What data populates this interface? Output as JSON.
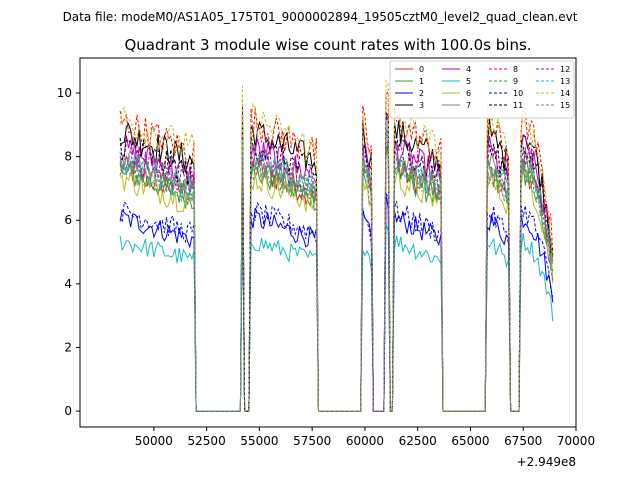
{
  "chart_data": {
    "type": "line",
    "suptitle": "Data file: modeM0/AS1A05_175T01_9000002894_19505cztM0_level2_quad_clean.evt",
    "title": "Quadrant 3 module wise count rates with 100.0s bins.",
    "xlabel": "",
    "ylabel": "",
    "x_offset_label": "+2.949e8",
    "xlim": [
      46500,
      70000
    ],
    "ylim": [
      -0.5,
      11.1
    ],
    "xticks": [
      50000,
      52500,
      55000,
      57500,
      60000,
      62500,
      65000,
      67500,
      70000
    ],
    "xtick_labels": [
      "50000",
      "52500",
      "55000",
      "57500",
      "60000",
      "62500",
      "65000",
      "67500",
      "70000"
    ],
    "yticks": [
      0,
      2,
      4,
      6,
      8,
      10
    ],
    "ytick_labels": [
      "0",
      "2",
      "4",
      "6",
      "8",
      "10"
    ],
    "grid": false,
    "legend_position": "top-right",
    "legend_columns": 4,
    "segments": [
      {
        "start": 48400,
        "end": 51900,
        "edge": "mixed"
      },
      {
        "start": 54150,
        "end": 54250,
        "edge": "spike"
      },
      {
        "start": 54600,
        "end": 57700,
        "edge": "mixed"
      },
      {
        "start": 59900,
        "end": 60300,
        "edge": "mixed"
      },
      {
        "start": 61000,
        "end": 61100,
        "edge": "spike"
      },
      {
        "start": 61400,
        "end": 63600,
        "edge": "mixed"
      },
      {
        "start": 65800,
        "end": 66800,
        "edge": "mixed"
      },
      {
        "start": 67400,
        "end": 68900,
        "edge": "descend"
      }
    ],
    "series": [
      {
        "name": "0",
        "color": "#d62728",
        "style": "solid",
        "level": 7.3
      },
      {
        "name": "1",
        "color": "#2ca02c",
        "style": "solid",
        "level": 7.2
      },
      {
        "name": "2",
        "color": "#0000ff",
        "style": "solid",
        "level": 5.8
      },
      {
        "name": "3",
        "color": "#000000",
        "style": "solid",
        "level": 8.4
      },
      {
        "name": "4",
        "color": "#bf00bf",
        "style": "solid",
        "level": 7.9
      },
      {
        "name": "5",
        "color": "#17bebe",
        "style": "solid",
        "level": 5.1
      },
      {
        "name": "6",
        "color": "#bcbd22",
        "style": "solid",
        "level": 7.0
      },
      {
        "name": "7",
        "color": "#7f7f7f",
        "style": "solid",
        "level": 7.6
      },
      {
        "name": "8",
        "color": "#ff0000",
        "style": "dashed",
        "level": 8.7
      },
      {
        "name": "9",
        "color": "#2ca02c",
        "style": "dashed",
        "level": 7.4
      },
      {
        "name": "10",
        "color": "#0000ff",
        "style": "dashed",
        "level": 6.0
      },
      {
        "name": "11",
        "color": "#000000",
        "style": "dashed",
        "level": 8.0
      },
      {
        "name": "12",
        "color": "#bf00bf",
        "style": "dashed",
        "level": 7.7
      },
      {
        "name": "13",
        "color": "#17bebe",
        "style": "dashed",
        "level": 7.5
      },
      {
        "name": "14",
        "color": "#bcbd22",
        "style": "dashed",
        "level": 8.8
      },
      {
        "name": "15",
        "color": "#7f7f7f",
        "style": "dashed",
        "level": 7.3
      }
    ]
  }
}
